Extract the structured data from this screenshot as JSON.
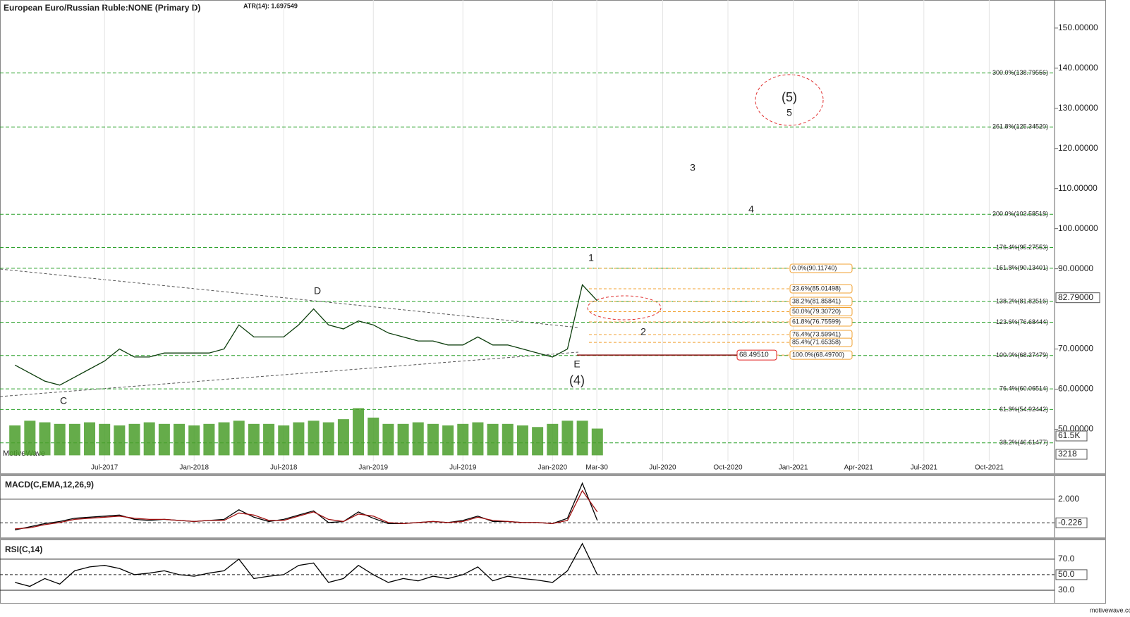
{
  "chart_data": [
    {
      "type": "line",
      "title": "European Euro/Russian Ruble:NONE (Primary D)",
      "subtitle": "ATR(14): 1.697549",
      "watermark": "MotiveWave",
      "x": [
        "2017-01",
        "2017-02",
        "2017-03",
        "2017-04",
        "2017-05",
        "2017-06",
        "2017-07",
        "2017-08",
        "2017-09",
        "2017-10",
        "2017-11",
        "2017-12",
        "2018-01",
        "2018-02",
        "2018-03",
        "2018-04",
        "2018-05",
        "2018-06",
        "2018-07",
        "2018-08",
        "2018-09",
        "2018-10",
        "2018-11",
        "2018-12",
        "2019-01",
        "2019-02",
        "2019-03",
        "2019-04",
        "2019-05",
        "2019-06",
        "2019-07",
        "2019-08",
        "2019-09",
        "2019-10",
        "2019-11",
        "2019-12",
        "2020-01",
        "2020-02",
        "2020-03",
        "2020-04"
      ],
      "series": [
        {
          "type": "line",
          "color": "#0b3d0b",
          "values": [
            66,
            64,
            62,
            61,
            63,
            65,
            67,
            70,
            68,
            68,
            69,
            69,
            69,
            69,
            70,
            76,
            73,
            73,
            73,
            76,
            80,
            76,
            75,
            77,
            76,
            74,
            73,
            72,
            72,
            71,
            71,
            73,
            71,
            71,
            70,
            69,
            68,
            70,
            86,
            82
          ]
        },
        {
          "type": "bar",
          "axis": "y2",
          "color": "#4a9e2a",
          "values": [
            95000,
            110000,
            105000,
            100000,
            100000,
            105000,
            100000,
            95000,
            100000,
            105000,
            100000,
            100000,
            95000,
            100000,
            105000,
            110000,
            100000,
            100000,
            95000,
            105000,
            110000,
            105000,
            115000,
            150000,
            120000,
            100000,
            100000,
            105000,
            100000,
            95000,
            100000,
            105000,
            100000,
            100000,
            95000,
            90000,
            100000,
            110000,
            110000,
            85000
          ]
        }
      ],
      "xlim": [
        "2016-12",
        "2022-01"
      ],
      "xticks": [
        {
          "value": "2017-07",
          "label": "Jul-2017"
        },
        {
          "value": "2018-01",
          "label": "Jan-2018"
        },
        {
          "value": "2018-07",
          "label": "Jul-2018"
        },
        {
          "value": "2019-01",
          "label": "Jan-2019"
        },
        {
          "value": "2019-07",
          "label": "Jul-2019"
        },
        {
          "value": "2020-01",
          "label": "Jan-2020"
        },
        {
          "value": "2020-03-30",
          "label": "Mar-30"
        },
        {
          "value": "2020-07",
          "label": "Jul-2020"
        },
        {
          "value": "2020-10",
          "label": "Oct-2020"
        },
        {
          "value": "2021-01",
          "label": "Jan-2021"
        },
        {
          "value": "2021-04",
          "label": "Apr-2021"
        },
        {
          "value": "2021-07",
          "label": "Jul-2021"
        },
        {
          "value": "2021-10",
          "label": "Oct-2021"
        }
      ],
      "ylim": [
        42,
        157
      ],
      "yticks": [
        {
          "value": 150,
          "label": "150.00000"
        },
        {
          "value": 140,
          "label": "140.00000"
        },
        {
          "value": 130,
          "label": "130.00000"
        },
        {
          "value": 120,
          "label": "120.00000"
        },
        {
          "value": 110,
          "label": "110.00000"
        },
        {
          "value": 100,
          "label": "100.00000"
        },
        {
          "value": 90,
          "label": "90.00000"
        },
        {
          "value": 70,
          "label": "70.00000"
        },
        {
          "value": 60,
          "label": "60.00000"
        },
        {
          "value": 50,
          "label": "50.00000"
        }
      ],
      "y2lim": [
        -19200,
        171300
      ],
      "y2ticks": [
        {
          "value": 61500,
          "label": "61.5K"
        },
        {
          "value": 3218,
          "label": "3218"
        }
      ],
      "grid": true,
      "last_price": {
        "value": 82.79,
        "label": "82.79000"
      },
      "marker": {
        "value": 68.4951,
        "label": "68.49510"
      },
      "levels": [
        {
          "value": 138.79556,
          "label": "300.0%(138.79556)"
        },
        {
          "value": 125.3452,
          "label": "261.8%(125.34520)"
        },
        {
          "value": 103.58518,
          "label": "200.0%(103.58518)"
        },
        {
          "value": 95.27553,
          "label": "176.4%(95.27553)"
        },
        {
          "value": 90.13401,
          "label": "161.8%(90.13401)"
        },
        {
          "value": 81.82516,
          "label": "138.2%(81.82516)"
        },
        {
          "value": 76.68444,
          "label": "123.6%(76.68444)"
        },
        {
          "value": 68.37479,
          "label": "100.0%(68.37479)"
        },
        {
          "value": 60.06514,
          "label": "76.4%(60.06514)"
        },
        {
          "value": 54.92442,
          "label": "61.8%(54.92442)"
        },
        {
          "value": 46.61477,
          "label": "38.2%(46.61477)"
        }
      ],
      "retracement": [
        {
          "value": 90.1174,
          "label": "0.0%(90.11740)"
        },
        {
          "value": 85.01498,
          "label": "23.6%(85.01498)"
        },
        {
          "value": 81.85841,
          "label": "38.2%(81.85841)"
        },
        {
          "value": 79.3072,
          "label": "50.0%(79.30720)"
        },
        {
          "value": 76.75599,
          "label": "61.8%(76.75599)"
        },
        {
          "value": 73.59941,
          "label": "76.4%(73.59941)"
        },
        {
          "value": 71.65358,
          "label": "85.4%(71.65358)"
        },
        {
          "value": 68.497,
          "label": "100.0%(68.49700)"
        }
      ],
      "wave_labels": [
        "C",
        "D",
        "E",
        "(4)",
        "1",
        "2",
        "3",
        "4",
        "5",
        "(5)"
      ]
    },
    {
      "type": "line",
      "title": "MACD(C,EMA,12,26,9)",
      "series": [
        {
          "type": "line",
          "color": "#000000",
          "values": [
            -0.9,
            -0.6,
            -0.3,
            -0.1,
            0.2,
            0.3,
            0.4,
            0.5,
            0.1,
            0.0,
            0.1,
            0.0,
            -0.1,
            0.0,
            0.1,
            1.0,
            0.3,
            -0.1,
            0.1,
            0.5,
            0.9,
            -0.2,
            -0.1,
            0.8,
            0.2,
            -0.3,
            -0.3,
            -0.2,
            -0.1,
            -0.2,
            0.0,
            0.4,
            -0.1,
            -0.1,
            -0.2,
            -0.2,
            -0.3,
            0.2,
            3.5,
            0.0
          ]
        },
        {
          "type": "line",
          "color": "#a01010",
          "values": [
            -0.8,
            -0.7,
            -0.4,
            -0.2,
            0.1,
            0.2,
            0.3,
            0.4,
            0.2,
            0.1,
            0.1,
            0.0,
            -0.1,
            0.0,
            0.0,
            0.7,
            0.5,
            0.0,
            0.0,
            0.4,
            0.8,
            0.1,
            -0.1,
            0.6,
            0.4,
            -0.2,
            -0.3,
            -0.2,
            -0.1,
            -0.2,
            -0.1,
            0.3,
            0.0,
            -0.1,
            -0.2,
            -0.2,
            -0.3,
            0.0,
            2.8,
            0.8
          ]
        }
      ],
      "ylim": [
        -1.6,
        4.1
      ],
      "yticks": [
        {
          "value": 2,
          "label": "2.000"
        },
        {
          "value": -0.226,
          "label": "-0.226"
        }
      ]
    },
    {
      "type": "line",
      "title": "RSI(C,14)",
      "series": [
        {
          "type": "line",
          "color": "#000000",
          "values": [
            40,
            35,
            45,
            38,
            55,
            60,
            62,
            58,
            50,
            52,
            55,
            50,
            48,
            52,
            55,
            70,
            45,
            48,
            50,
            62,
            65,
            40,
            45,
            62,
            50,
            40,
            45,
            42,
            48,
            45,
            50,
            60,
            42,
            48,
            45,
            43,
            40,
            55,
            90,
            50
          ]
        }
      ],
      "ylim": [
        17.3,
        93.4
      ],
      "yticks": [
        {
          "value": 70,
          "label": "70.0"
        },
        {
          "value": 50,
          "label": "50.0"
        },
        {
          "value": 30,
          "label": "30.0"
        }
      ]
    }
  ],
  "footer": "motivewave.com"
}
